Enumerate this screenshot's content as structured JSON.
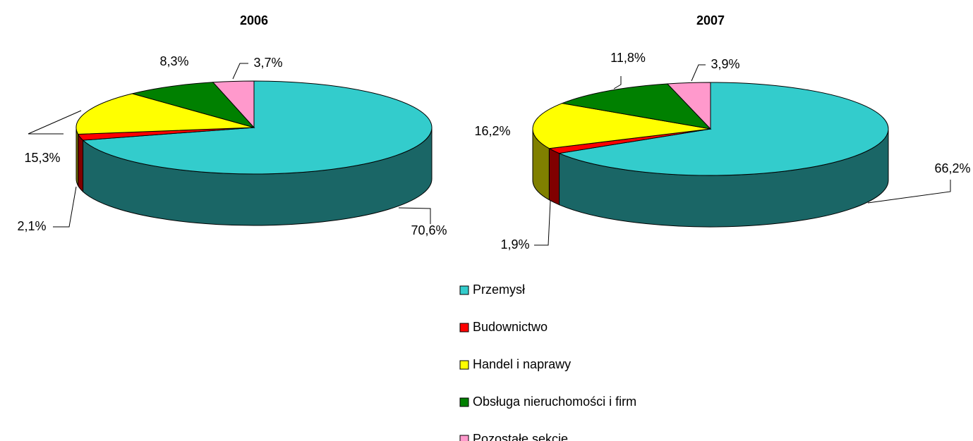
{
  "chart_data": [
    {
      "type": "pie3d",
      "title": "2006",
      "categories": [
        "Przemysł",
        "Budownictwo",
        "Handel i naprawy",
        "Obsługa nieruchomości i firm",
        "Pozostałe sekcje"
      ],
      "values": [
        70.6,
        2.1,
        15.3,
        8.3,
        3.7
      ],
      "value_labels": [
        "70,6%",
        "2,1%",
        "15,3%",
        "8,3%",
        "3,7%"
      ],
      "colors": [
        "#33CCCC",
        "#FF0000",
        "#FFFF00",
        "#008000",
        "#FF99CC"
      ]
    },
    {
      "type": "pie3d",
      "title": "2007",
      "categories": [
        "Przemysł",
        "Budownictwo",
        "Handel i naprawy",
        "Obsługa nieruchomości i firm",
        "Pozostałe sekcje"
      ],
      "values": [
        66.2,
        1.9,
        16.2,
        11.8,
        3.9
      ],
      "value_labels": [
        "66,2%",
        "1,9%",
        "16,2%",
        "11,8%",
        "3,9%"
      ],
      "colors": [
        "#33CCCC",
        "#FF0000",
        "#FFFF00",
        "#008000",
        "#FF99CC"
      ]
    }
  ]
}
